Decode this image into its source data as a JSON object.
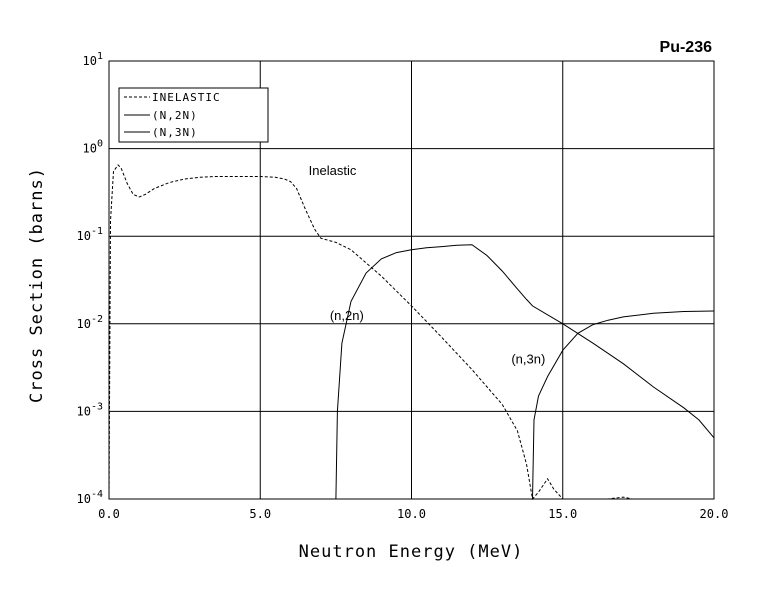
{
  "chart_data": {
    "type": "line",
    "title": "Pu-236",
    "xlabel": "Neutron Energy (MeV)",
    "ylabel": "Cross Section (barns)",
    "xlim": [
      0,
      20
    ],
    "ylim": [
      0.0001,
      10
    ],
    "yscale": "log",
    "grid": true,
    "legend_position": "top-left",
    "x_ticks": [
      "0.0",
      "5.0",
      "10.0",
      "15.0",
      "20.0"
    ],
    "y_ticks": [
      {
        "base": "10",
        "exp": "1"
      },
      {
        "base": "10",
        "exp": "0"
      },
      {
        "base": "10",
        "exp": "-1"
      },
      {
        "base": "10",
        "exp": "-2"
      },
      {
        "base": "10",
        "exp": "-3"
      },
      {
        "base": "10",
        "exp": "-4"
      }
    ],
    "series": [
      {
        "name": "INELASTIC",
        "style": "dashed",
        "x": [
          0.0,
          0.05,
          0.15,
          0.3,
          0.4,
          0.6,
          0.8,
          1.0,
          1.2,
          1.5,
          2.0,
          2.5,
          3.0,
          3.5,
          4.0,
          4.5,
          5.0,
          5.5,
          5.8,
          6.0,
          6.2,
          6.5,
          6.8,
          7.0,
          7.5,
          8.0,
          9.0,
          10.0,
          11.0,
          12.0,
          13.0,
          13.5,
          13.8,
          14.0,
          14.2,
          14.5,
          14.7,
          15.0,
          15.5,
          16.0,
          16.5,
          17.0,
          17.3,
          17.5,
          18.0,
          20.0
        ],
        "y": [
          0.0001,
          0.15,
          0.55,
          0.65,
          0.6,
          0.4,
          0.3,
          0.28,
          0.3,
          0.35,
          0.41,
          0.45,
          0.47,
          0.48,
          0.48,
          0.48,
          0.48,
          0.47,
          0.45,
          0.42,
          0.35,
          0.2,
          0.12,
          0.095,
          0.085,
          0.07,
          0.035,
          0.016,
          0.007,
          0.003,
          0.0012,
          0.0006,
          0.00025,
          0.0001,
          0.00012,
          0.00017,
          0.00013,
          0.0001,
          0.0001,
          0.0001,
          0.0001,
          0.000105,
          0.0001,
          0.0001,
          0.0001,
          0.0001
        ]
      },
      {
        "name": "(N,2N)",
        "style": "solid",
        "x": [
          7.5,
          7.55,
          7.7,
          8.0,
          8.5,
          9.0,
          9.5,
          10.0,
          10.5,
          11.0,
          11.5,
          12.0,
          12.5,
          13.0,
          13.5,
          13.8,
          14.0,
          15.0,
          16.0,
          17.0,
          18.0,
          19.0,
          19.5,
          20.0
        ],
        "y": [
          0.0001,
          0.001,
          0.006,
          0.018,
          0.038,
          0.055,
          0.065,
          0.07,
          0.074,
          0.076,
          0.079,
          0.08,
          0.06,
          0.04,
          0.025,
          0.019,
          0.016,
          0.01,
          0.006,
          0.0035,
          0.0019,
          0.0011,
          0.0008,
          0.0005
        ]
      },
      {
        "name": "(N,3N)",
        "style": "solid",
        "x": [
          14.0,
          14.05,
          14.2,
          14.5,
          15.0,
          15.5,
          16.0,
          16.5,
          17.0,
          18.0,
          19.0,
          20.0
        ],
        "y": [
          0.0001,
          0.0008,
          0.0015,
          0.0025,
          0.005,
          0.0078,
          0.0098,
          0.011,
          0.012,
          0.0132,
          0.0138,
          0.014
        ]
      }
    ],
    "annotations": [
      {
        "text": "Inelastic",
        "x": 6.6,
        "y": 0.5
      },
      {
        "text": "(n,2n)",
        "x": 7.3,
        "y": 0.011
      },
      {
        "text": "(n,3n)",
        "x": 13.3,
        "y": 0.0035
      }
    ]
  }
}
